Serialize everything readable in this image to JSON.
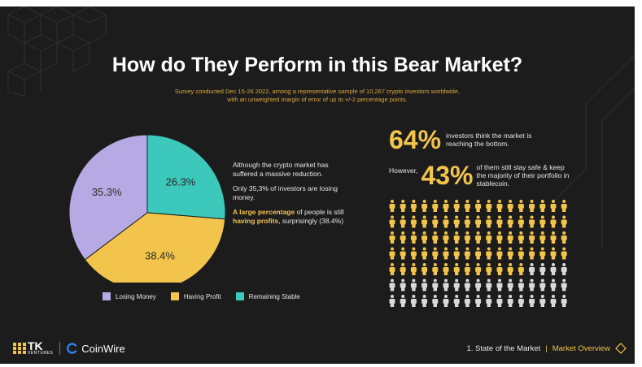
{
  "header": {
    "title": "How do They Perform in this Bear Market?",
    "subtitle_line1": "Survey conducted Dec 15-26 2022, among a representative sample of 10,267 crypto investors worldwide,",
    "subtitle_line2": "with an unweighted margin of error of up to +/-2 percentage points."
  },
  "chart_data": {
    "type": "pie",
    "slices": [
      {
        "name": "Losing Money",
        "value": 35.3,
        "label": "35.3%",
        "color": "#b7a9e3"
      },
      {
        "name": "Having Profit",
        "value": 38.4,
        "label": "38.4%",
        "color": "#f2c44b"
      },
      {
        "name": "Remaining Stable",
        "value": 26.3,
        "label": "26.3%",
        "color": "#3cc8bb"
      }
    ],
    "legend_position": "bottom"
  },
  "side_text": {
    "p1": "Although the crypto market has suffered a massive reduction.",
    "p2": "Only 35,3% of investors are losing money.",
    "p3_hl1": "A large percentage",
    "p3_mid": " of people is still ",
    "p3_hl2": "having profits",
    "p3_end": ", surprisingly (38.4%)"
  },
  "stats": {
    "stat1_value": "64%",
    "stat1_text": "investors think the market is reaching the bottom.",
    "stat2_prefix": "However,",
    "stat2_value": "43%",
    "stat2_text": "of them still stay safe & keep the majority of their portfolio in stablecoin."
  },
  "people_grid": {
    "columns": 17,
    "rows": 7,
    "highlighted": 81,
    "highlight_color": "#f2c44b",
    "dim_color": "#d9d9d9"
  },
  "footer": {
    "tk_text": "TK",
    "tk_sub": "VENTURES",
    "coinwire": "CoinWire",
    "nav_section": "1. State of the Market",
    "nav_sep": "|",
    "nav_page": "Market Overview"
  }
}
